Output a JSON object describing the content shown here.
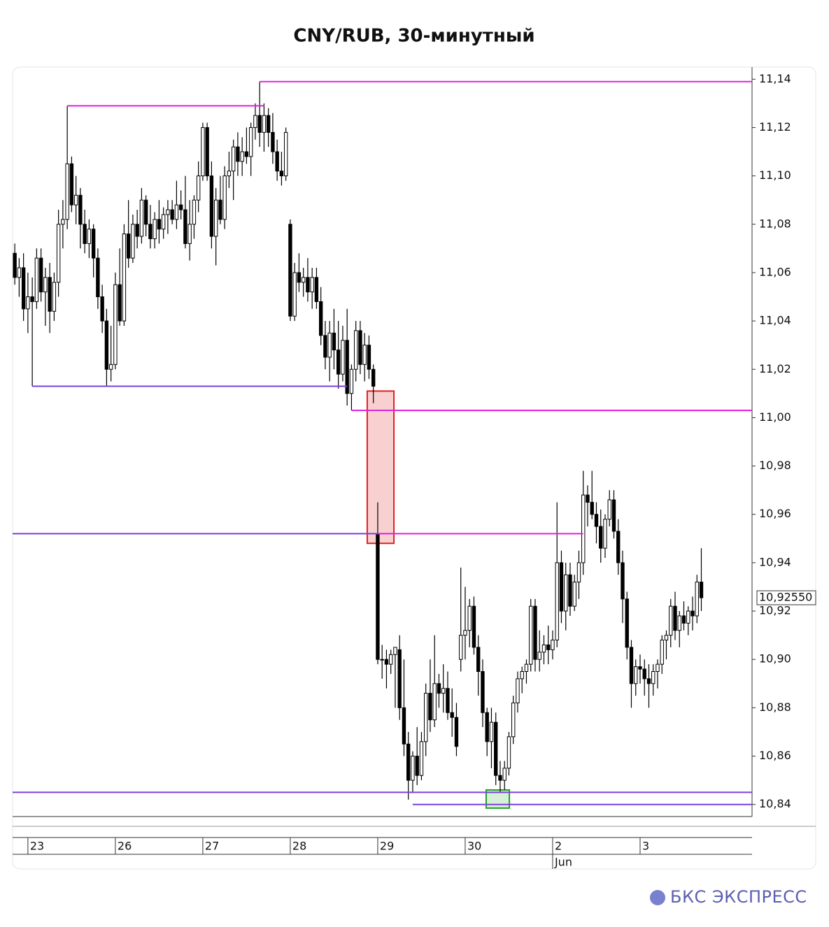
{
  "chart_data": {
    "type": "candlestick",
    "title": "CNY/RUB, 30-минутный",
    "brand": "БКС ЭКСПРЕСС",
    "up_color": "#ffffff",
    "down_color": "#000000",
    "outline_color": "#000000",
    "xlim": [
      -0.5,
      168.6
    ],
    "ylim": [
      10.835,
      11.145
    ],
    "yticks": [
      {
        "value": 10.84,
        "label": "10,84"
      },
      {
        "value": 10.86,
        "label": "10,86"
      },
      {
        "value": 10.88,
        "label": "10,88"
      },
      {
        "value": 10.9,
        "label": "10,90"
      },
      {
        "value": 10.92,
        "label": "10,92"
      },
      {
        "value": 10.94,
        "label": "10,94"
      },
      {
        "value": 10.96,
        "label": "10,96"
      },
      {
        "value": 10.98,
        "label": "10,98"
      },
      {
        "value": 11.0,
        "label": "11,00"
      },
      {
        "value": 11.02,
        "label": "11,02"
      },
      {
        "value": 11.04,
        "label": "11,04"
      },
      {
        "value": 11.06,
        "label": "11,06"
      },
      {
        "value": 11.08,
        "label": "11,08"
      },
      {
        "value": 11.1,
        "label": "11,10"
      },
      {
        "value": 11.12,
        "label": "11,12"
      },
      {
        "value": 11.14,
        "label": "11,14"
      }
    ],
    "xticks": [
      {
        "value": 3,
        "label": "23"
      },
      {
        "value": 23,
        "label": "26"
      },
      {
        "value": 43,
        "label": "27"
      },
      {
        "value": 63,
        "label": "28"
      },
      {
        "value": 83,
        "label": "29"
      },
      {
        "value": 103,
        "label": "30"
      },
      {
        "value": 123,
        "label": "2"
      },
      {
        "value": 143,
        "label": "3"
      }
    ],
    "month_label": {
      "value": 123,
      "label": "Jun"
    },
    "last_price": {
      "value": 10.9255,
      "label": "10,92550"
    },
    "levels": [
      {
        "price": 11.139,
        "from": 56,
        "color": "#e020e0"
      },
      {
        "price": 11.129,
        "from": 12,
        "to": 57,
        "color": "#e020e0"
      },
      {
        "price": 11.013,
        "from": 4,
        "to": 76,
        "color": "#7b3fe0"
      },
      {
        "price": 11.003,
        "from": 77,
        "color": "#e020e0"
      },
      {
        "price": 10.952,
        "from": -0.5,
        "to": 83,
        "color": "#7b3fe0"
      },
      {
        "price": 10.952,
        "from": 83,
        "to": 130,
        "color": "#e020e0"
      },
      {
        "price": 10.845,
        "from": -0.5,
        "color": "#7b3fe0"
      },
      {
        "price": 10.84,
        "from": 91,
        "color": "#7b3fe0"
      }
    ],
    "zones": [
      {
        "x": [
          80.6,
          86.7
        ],
        "y": [
          10.948,
          11.011
        ],
        "fill": "#f8d0d0",
        "stroke": "#e02020"
      },
      {
        "x": [
          107.8,
          113.1
        ],
        "y": [
          10.8385,
          10.846
        ],
        "fill": "#d8f0d8",
        "stroke": "#20a020"
      }
    ],
    "ohlc": [
      [
        11.068,
        11.072,
        11.055,
        11.058
      ],
      [
        11.058,
        11.066,
        11.05,
        11.062
      ],
      [
        11.062,
        11.068,
        11.04,
        11.045
      ],
      [
        11.045,
        11.06,
        11.035,
        11.05
      ],
      [
        11.05,
        11.058,
        11.013,
        11.048
      ],
      [
        11.048,
        11.07,
        11.045,
        11.066
      ],
      [
        11.066,
        11.07,
        11.048,
        11.052
      ],
      [
        11.052,
        11.062,
        11.038,
        11.058
      ],
      [
        11.058,
        11.064,
        11.035,
        11.044
      ],
      [
        11.044,
        11.06,
        11.04,
        11.056
      ],
      [
        11.056,
        11.086,
        11.05,
        11.08
      ],
      [
        11.08,
        11.09,
        11.07,
        11.082
      ],
      [
        11.082,
        11.129,
        11.078,
        11.105
      ],
      [
        11.105,
        11.108,
        11.085,
        11.088
      ],
      [
        11.088,
        11.1,
        11.08,
        11.092
      ],
      [
        11.092,
        11.095,
        11.07,
        11.08
      ],
      [
        11.08,
        11.086,
        11.068,
        11.072
      ],
      [
        11.072,
        11.082,
        11.066,
        11.078
      ],
      [
        11.078,
        11.08,
        11.058,
        11.066
      ],
      [
        11.066,
        11.07,
        11.045,
        11.05
      ],
      [
        11.05,
        11.055,
        11.035,
        11.04
      ],
      [
        11.04,
        11.045,
        11.013,
        11.02
      ],
      [
        11.02,
        11.038,
        11.015,
        11.022
      ],
      [
        11.022,
        11.06,
        11.02,
        11.055
      ],
      [
        11.055,
        11.07,
        11.038,
        11.04
      ],
      [
        11.04,
        11.08,
        11.038,
        11.076
      ],
      [
        11.076,
        11.09,
        11.062,
        11.066
      ],
      [
        11.066,
        11.084,
        11.064,
        11.08
      ],
      [
        11.08,
        11.086,
        11.07,
        11.075
      ],
      [
        11.075,
        11.095,
        11.072,
        11.09
      ],
      [
        11.09,
        11.092,
        11.075,
        11.08
      ],
      [
        11.08,
        11.088,
        11.07,
        11.074
      ],
      [
        11.074,
        11.085,
        11.07,
        11.082
      ],
      [
        11.082,
        11.09,
        11.072,
        11.078
      ],
      [
        11.078,
        11.087,
        11.074,
        11.084
      ],
      [
        11.084,
        11.09,
        11.076,
        11.086
      ],
      [
        11.086,
        11.09,
        11.08,
        11.082
      ],
      [
        11.082,
        11.098,
        11.078,
        11.088
      ],
      [
        11.088,
        11.094,
        11.082,
        11.086
      ],
      [
        11.086,
        11.1,
        11.07,
        11.072
      ],
      [
        11.072,
        11.09,
        11.065,
        11.08
      ],
      [
        11.08,
        11.092,
        11.074,
        11.09
      ],
      [
        11.09,
        11.106,
        11.085,
        11.1
      ],
      [
        11.1,
        11.122,
        11.098,
        11.12
      ],
      [
        11.12,
        11.122,
        11.098,
        11.1
      ],
      [
        11.1,
        11.106,
        11.07,
        11.075
      ],
      [
        11.075,
        11.095,
        11.063,
        11.09
      ],
      [
        11.09,
        11.1,
        11.08,
        11.082
      ],
      [
        11.082,
        11.104,
        11.078,
        11.1
      ],
      [
        11.1,
        11.11,
        11.095,
        11.102
      ],
      [
        11.102,
        11.115,
        11.09,
        11.112
      ],
      [
        11.112,
        11.118,
        11.1,
        11.106
      ],
      [
        11.106,
        11.116,
        11.1,
        11.11
      ],
      [
        11.11,
        11.12,
        11.105,
        11.108
      ],
      [
        11.108,
        11.122,
        11.1,
        11.12
      ],
      [
        11.12,
        11.13,
        11.115,
        11.125
      ],
      [
        11.125,
        11.139,
        11.112,
        11.118
      ],
      [
        11.118,
        11.13,
        11.11,
        11.125
      ],
      [
        11.125,
        11.128,
        11.112,
        11.118
      ],
      [
        11.118,
        11.126,
        11.105,
        11.11
      ],
      [
        11.11,
        11.115,
        11.098,
        11.102
      ],
      [
        11.102,
        11.11,
        11.096,
        11.1
      ],
      [
        11.1,
        11.12,
        11.098,
        11.118
      ],
      [
        11.08,
        11.082,
        11.04,
        11.042
      ],
      [
        11.042,
        11.064,
        11.04,
        11.06
      ],
      [
        11.06,
        11.068,
        11.052,
        11.056
      ],
      [
        11.056,
        11.062,
        11.05,
        11.058
      ],
      [
        11.058,
        11.066,
        11.048,
        11.052
      ],
      [
        11.052,
        11.062,
        11.045,
        11.058
      ],
      [
        11.058,
        11.062,
        11.045,
        11.048
      ],
      [
        11.048,
        11.054,
        11.03,
        11.034
      ],
      [
        11.034,
        11.04,
        11.02,
        11.025
      ],
      [
        11.025,
        11.04,
        11.015,
        11.035
      ],
      [
        11.035,
        11.045,
        11.02,
        11.028
      ],
      [
        11.028,
        11.04,
        11.012,
        11.018
      ],
      [
        11.018,
        11.038,
        11.015,
        11.032
      ],
      [
        11.032,
        11.045,
        11.005,
        11.01
      ],
      [
        11.01,
        11.022,
        11.003,
        11.02
      ],
      [
        11.02,
        11.04,
        11.015,
        11.036
      ],
      [
        11.036,
        11.04,
        11.018,
        11.022
      ],
      [
        11.022,
        11.035,
        11.015,
        11.03
      ],
      [
        11.03,
        11.034,
        11.016,
        11.02
      ],
      [
        11.02,
        11.022,
        11.006,
        11.013
      ],
      [
        10.952,
        10.965,
        10.898,
        10.9
      ],
      [
        10.9,
        10.906,
        10.892,
        10.9
      ],
      [
        10.9,
        10.904,
        10.888,
        10.898
      ],
      [
        10.898,
        10.904,
        10.894,
        10.902
      ],
      [
        10.902,
        10.905,
        10.88,
        10.905
      ],
      [
        10.904,
        10.91,
        10.875,
        10.88
      ],
      [
        10.88,
        10.9,
        10.86,
        10.865
      ],
      [
        10.865,
        10.87,
        10.842,
        10.85
      ],
      [
        10.85,
        10.862,
        10.845,
        10.86
      ],
      [
        10.86,
        10.872,
        10.848,
        10.852
      ],
      [
        10.852,
        10.87,
        10.85,
        10.866
      ],
      [
        10.866,
        10.89,
        10.86,
        10.886
      ],
      [
        10.886,
        10.9,
        10.87,
        10.875
      ],
      [
        10.875,
        10.91,
        10.872,
        10.89
      ],
      [
        10.89,
        10.894,
        10.88,
        10.886
      ],
      [
        10.886,
        10.898,
        10.878,
        10.888
      ],
      [
        10.888,
        10.895,
        10.875,
        10.878
      ],
      [
        10.878,
        10.888,
        10.868,
        10.876
      ],
      [
        10.876,
        10.882,
        10.86,
        10.864
      ],
      [
        10.9,
        10.938,
        10.895,
        10.91
      ],
      [
        10.91,
        10.93,
        10.9,
        10.912
      ],
      [
        10.912,
        10.925,
        10.905,
        10.922
      ],
      [
        10.922,
        10.926,
        10.902,
        10.905
      ],
      [
        10.905,
        10.91,
        10.885,
        10.895
      ],
      [
        10.895,
        10.9,
        10.872,
        10.878
      ],
      [
        10.878,
        10.88,
        10.86,
        10.866
      ],
      [
        10.866,
        10.88,
        10.855,
        10.874
      ],
      [
        10.874,
        10.878,
        10.848,
        10.852
      ],
      [
        10.852,
        10.858,
        10.845,
        10.85
      ],
      [
        10.85,
        10.858,
        10.846,
        10.855
      ],
      [
        10.855,
        10.87,
        10.852,
        10.868
      ],
      [
        10.868,
        10.885,
        10.865,
        10.882
      ],
      [
        10.882,
        10.895,
        10.878,
        10.892
      ],
      [
        10.892,
        10.897,
        10.886,
        10.895
      ],
      [
        10.895,
        10.9,
        10.89,
        10.898
      ],
      [
        10.898,
        10.925,
        10.895,
        10.922
      ],
      [
        10.922,
        10.925,
        10.895,
        10.9
      ],
      [
        10.9,
        10.912,
        10.895,
        10.903
      ],
      [
        10.903,
        10.91,
        10.898,
        10.906
      ],
      [
        10.906,
        10.914,
        10.898,
        10.904
      ],
      [
        10.904,
        10.912,
        10.9,
        10.908
      ],
      [
        10.908,
        10.965,
        10.905,
        10.94
      ],
      [
        10.94,
        10.945,
        10.915,
        10.92
      ],
      [
        10.92,
        10.94,
        10.912,
        10.935
      ],
      [
        10.935,
        10.94,
        10.918,
        10.922
      ],
      [
        10.922,
        10.935,
        10.92,
        10.932
      ],
      [
        10.932,
        10.945,
        10.925,
        10.94
      ],
      [
        10.94,
        10.978,
        10.935,
        10.968
      ],
      [
        10.968,
        10.972,
        10.955,
        10.965
      ],
      [
        10.965,
        10.978,
        10.958,
        10.96
      ],
      [
        10.96,
        10.965,
        10.948,
        10.955
      ],
      [
        10.955,
        10.962,
        10.94,
        10.946
      ],
      [
        10.946,
        10.96,
        10.942,
        10.958
      ],
      [
        10.958,
        10.97,
        10.955,
        10.966
      ],
      [
        10.966,
        10.97,
        10.95,
        10.953
      ],
      [
        10.953,
        10.958,
        10.935,
        10.94
      ],
      [
        10.94,
        10.945,
        10.915,
        10.925
      ],
      [
        10.925,
        10.928,
        10.9,
        10.905
      ],
      [
        10.905,
        10.908,
        10.88,
        10.89
      ],
      [
        10.89,
        10.9,
        10.885,
        10.897
      ],
      [
        10.897,
        10.902,
        10.89,
        10.896
      ],
      [
        10.896,
        10.9,
        10.885,
        10.892
      ],
      [
        10.892,
        10.898,
        10.88,
        10.89
      ],
      [
        10.89,
        10.898,
        10.885,
        10.895
      ],
      [
        10.895,
        10.9,
        10.888,
        10.898
      ],
      [
        10.898,
        10.91,
        10.894,
        10.908
      ],
      [
        10.908,
        10.912,
        10.9,
        10.91
      ],
      [
        10.91,
        10.925,
        10.905,
        10.922
      ],
      [
        10.922,
        10.928,
        10.908,
        10.912
      ],
      [
        10.912,
        10.92,
        10.905,
        10.918
      ],
      [
        10.918,
        10.924,
        10.912,
        10.915
      ],
      [
        10.915,
        10.922,
        10.91,
        10.92
      ],
      [
        10.92,
        10.926,
        10.912,
        10.918
      ],
      [
        10.918,
        10.935,
        10.915,
        10.932
      ],
      [
        10.932,
        10.946,
        10.92,
        10.9255
      ]
    ]
  }
}
